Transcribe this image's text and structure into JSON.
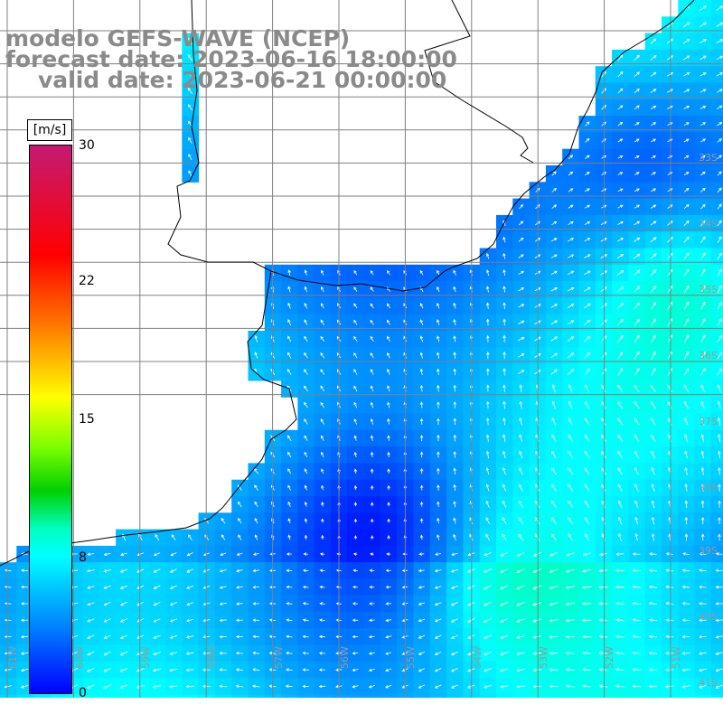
{
  "title": {
    "model": "modelo GEFS-WAVE (NCEP)",
    "forecast_date": "forecast date: 2023-06-16 18:00:00",
    "valid_date": "valid date: 2023-06-21 00:00:00"
  },
  "colorbar": {
    "unit": "[m/s]",
    "ticks": [
      "30",
      "22",
      "15",
      "8",
      "0"
    ],
    "tick_values": [
      30,
      22,
      15,
      8,
      0
    ]
  },
  "axes": {
    "lat_labels": [
      "33S",
      "34S",
      "35S",
      "36S",
      "37S",
      "38S",
      "39S",
      "40S",
      "41S"
    ],
    "lat_values": [
      -33,
      -34,
      -35,
      -36,
      -37,
      -38,
      -39,
      -40,
      -41
    ],
    "lon_labels": [
      "61W",
      "60W",
      "59W",
      "58W",
      "57W",
      "56W",
      "55W",
      "54W",
      "53W",
      "52W",
      "51W"
    ],
    "lon_values": [
      -61,
      -60,
      -59,
      -58,
      -57,
      -56,
      -55,
      -54,
      -53,
      -52,
      -51
    ]
  },
  "colors": {
    "land": "#ffffff",
    "coast": "#000000",
    "grid": "#808080",
    "arrow": "#ffffff",
    "title": "#8a8a8a"
  },
  "field": {
    "variable": "wind speed",
    "units": "m/s",
    "range": [
      0,
      30
    ]
  }
}
